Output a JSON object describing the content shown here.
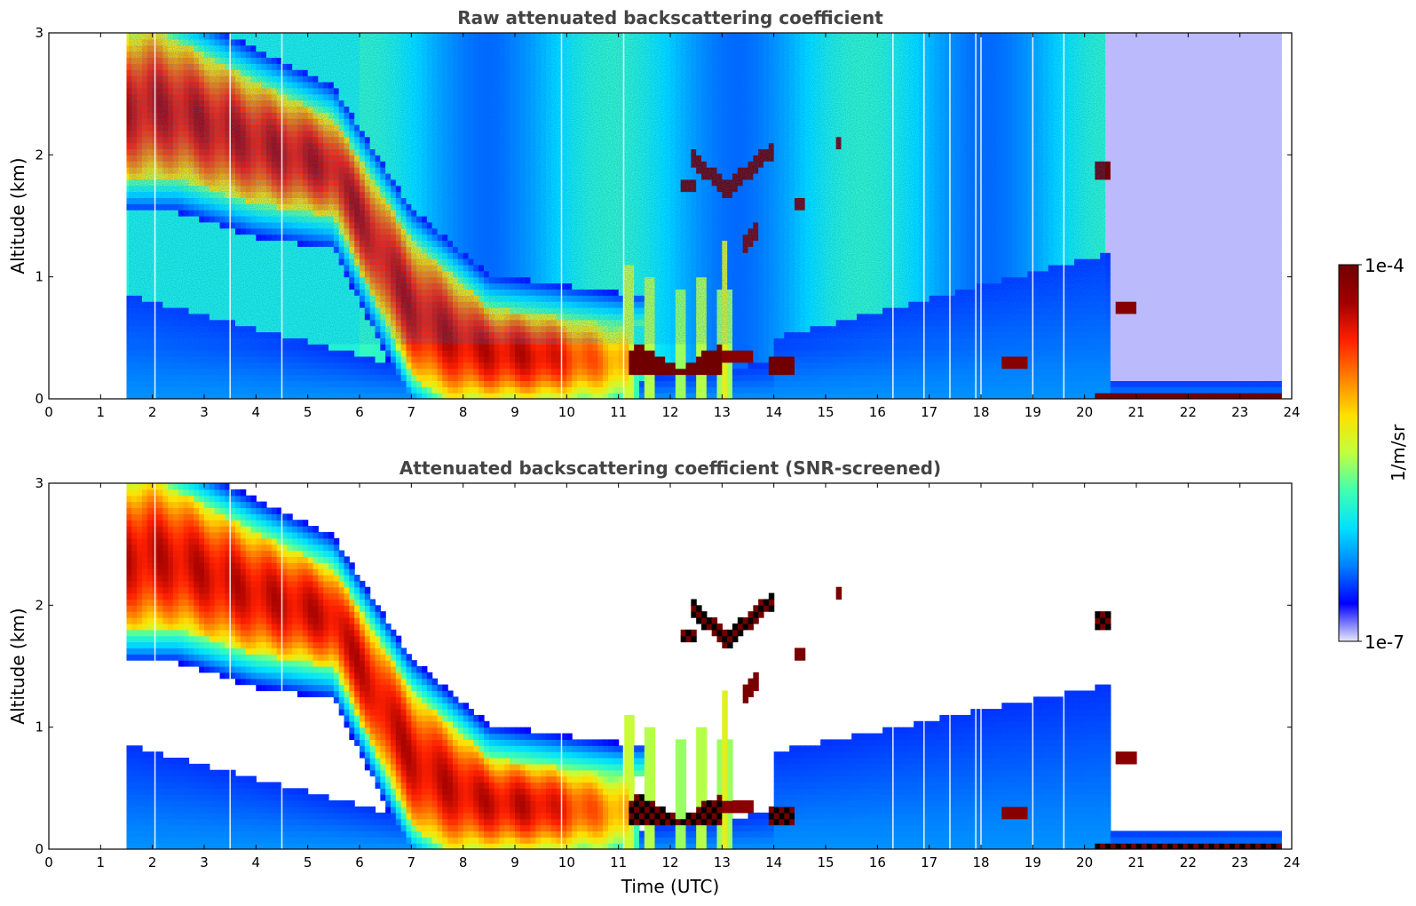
{
  "chart_data": [
    {
      "type": "heatmap",
      "title": "Raw attenuated backscattering coefficient",
      "xlabel": "",
      "ylabel": "Altitude (km)",
      "xlim": [
        0,
        24
      ],
      "ylim": [
        0,
        3
      ],
      "x_ticks": [
        "0",
        "1",
        "2",
        "3",
        "4",
        "5",
        "6",
        "7",
        "8",
        "9",
        "10",
        "11",
        "12",
        "13",
        "14",
        "15",
        "16",
        "17",
        "18",
        "19",
        "20",
        "21",
        "22",
        "23",
        "24"
      ],
      "y_ticks": [
        "0",
        "1",
        "2",
        "3"
      ],
      "data_time_range": [
        1.55,
        23.75
      ],
      "screened": false,
      "features": [
        {
          "name": "residual layer aerosol",
          "time": [
            1.55,
            6.0
          ],
          "altitude_top": [
            2.8,
            1.5
          ],
          "level": "high"
        },
        {
          "name": "descending aerosol layer",
          "time": [
            5.5,
            10.5
          ],
          "altitude": [
            1.8,
            0.2
          ],
          "level": "high"
        },
        {
          "name": "low cloud",
          "time": [
            11.2,
            13.0
          ],
          "altitude": [
            0.2,
            0.35
          ],
          "level": "saturated"
        },
        {
          "name": "mid-level clouds",
          "time": [
            12.3,
            14.2
          ],
          "altitude": [
            1.7,
            2.2
          ],
          "level": "saturated"
        },
        {
          "name": "nocturnal surface layer",
          "time": [
            20.3,
            23.75
          ],
          "altitude": [
            0.0,
            0.1
          ],
          "level": "saturated"
        }
      ]
    },
    {
      "type": "heatmap",
      "title": "Attenuated backscattering coefficient (SNR-screened)",
      "xlabel": "Time (UTC)",
      "ylabel": "Altitude (km)",
      "xlim": [
        0,
        24
      ],
      "ylim": [
        0,
        3
      ],
      "x_ticks": [
        "0",
        "1",
        "2",
        "3",
        "4",
        "5",
        "6",
        "7",
        "8",
        "9",
        "10",
        "11",
        "12",
        "13",
        "14",
        "15",
        "16",
        "17",
        "18",
        "19",
        "20",
        "21",
        "22",
        "23",
        "24"
      ],
      "y_ticks": [
        "0",
        "1",
        "2",
        "3"
      ],
      "data_time_range": [
        1.55,
        23.75
      ],
      "screened": true,
      "features": [
        {
          "name": "residual layer aerosol",
          "time": [
            1.55,
            6.0
          ],
          "altitude_top": [
            2.8,
            1.5
          ],
          "level": "high"
        },
        {
          "name": "boundary layer",
          "time": [
            14.3,
            20.5
          ],
          "altitude_top": [
            0.8,
            1.4
          ],
          "level": "low"
        },
        {
          "name": "low cloud",
          "time": [
            11.2,
            13.0
          ],
          "altitude": [
            0.2,
            0.35
          ],
          "level": "saturated"
        },
        {
          "name": "mid-level clouds",
          "time": [
            12.3,
            14.2
          ],
          "altitude": [
            1.7,
            2.2
          ],
          "level": "saturated"
        }
      ]
    }
  ],
  "colorbar": {
    "label": "1/m/sr",
    "min_label": "1e-7",
    "max_label": "1e-4",
    "colormap": [
      "#e8e8fb",
      "#0000ff",
      "#0080ff",
      "#00e0ff",
      "#40ffb0",
      "#c0ff40",
      "#ffe000",
      "#ff8000",
      "#ff2000",
      "#a00000",
      "#700000"
    ]
  }
}
